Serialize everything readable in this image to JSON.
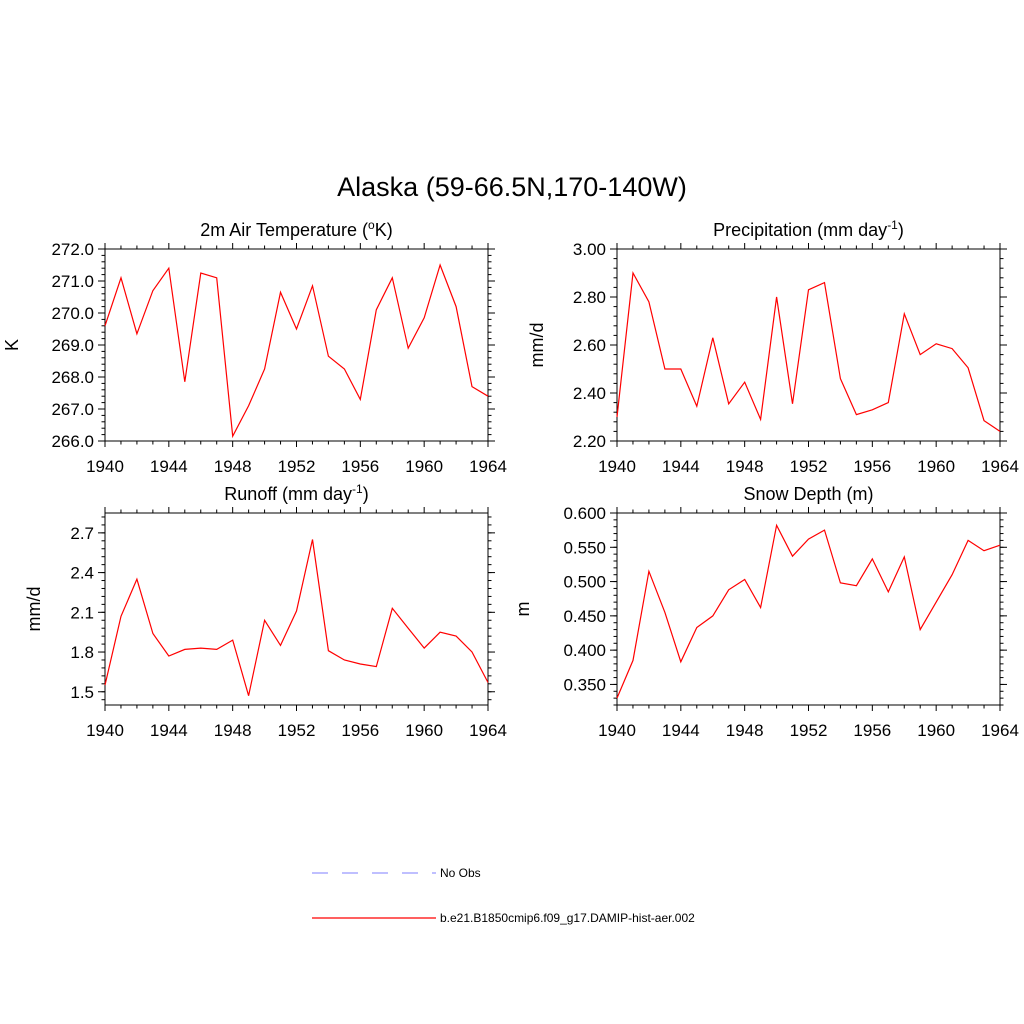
{
  "figure": {
    "title": "Alaska (59-66.5N,170-140W)"
  },
  "legend": [
    {
      "label": "No Obs",
      "color": "#9999ff",
      "dash": "dashed"
    },
    {
      "label": "b.e21.B1850cmip6.f09_g17.DAMIP-hist-aer.002",
      "color": "#ff0000",
      "dash": "solid"
    }
  ],
  "chart_data": [
    {
      "id": "temp",
      "type": "line",
      "title": "2m Air Temperature (",
      "title_sup": "o",
      "title_suffix": "K)",
      "ylabel": "K",
      "xlim": [
        1940,
        1964
      ],
      "ylim": [
        266.0,
        272.0
      ],
      "xticks": [
        "1940",
        "1944",
        "1948",
        "1952",
        "1956",
        "1960",
        "1964"
      ],
      "yticks": [
        "266.0",
        "267.0",
        "268.0",
        "269.0",
        "270.0",
        "271.0",
        "272.0"
      ],
      "ytick_values": [
        266,
        267,
        268,
        269,
        270,
        271,
        272
      ],
      "yminor": 0.2,
      "color": "#ff0000",
      "x": [
        1940,
        1941,
        1942,
        1943,
        1944,
        1945,
        1946,
        1947,
        1948,
        1949,
        1950,
        1951,
        1952,
        1953,
        1954,
        1955,
        1956,
        1957,
        1958,
        1959,
        1960,
        1961,
        1962,
        1963,
        1964
      ],
      "y": [
        269.6,
        271.1,
        269.35,
        270.7,
        271.4,
        267.85,
        271.25,
        271.1,
        266.15,
        267.1,
        268.25,
        270.65,
        269.5,
        270.85,
        268.65,
        268.25,
        267.3,
        270.1,
        271.1,
        268.9,
        269.85,
        271.5,
        270.2,
        267.7,
        267.4
      ]
    },
    {
      "id": "precip",
      "type": "line",
      "title": "Precipitation (mm day",
      "title_sup": "-1",
      "title_suffix": ")",
      "ylabel": "mm/d",
      "xlim": [
        1940,
        1964
      ],
      "ylim": [
        2.2,
        3.0
      ],
      "xticks": [
        "1940",
        "1944",
        "1948",
        "1952",
        "1956",
        "1960",
        "1964"
      ],
      "yticks": [
        "2.20",
        "2.40",
        "2.60",
        "2.80",
        "3.00"
      ],
      "ytick_values": [
        2.2,
        2.4,
        2.6,
        2.8,
        3.0
      ],
      "yminor": 0.04,
      "color": "#ff0000",
      "x": [
        1940,
        1941,
        1942,
        1943,
        1944,
        1945,
        1946,
        1947,
        1948,
        1949,
        1950,
        1951,
        1952,
        1953,
        1954,
        1955,
        1956,
        1957,
        1958,
        1959,
        1960,
        1961,
        1962,
        1963,
        1964
      ],
      "y": [
        2.3,
        2.9,
        2.78,
        2.5,
        2.5,
        2.345,
        2.63,
        2.355,
        2.445,
        2.29,
        2.8,
        2.355,
        2.83,
        2.86,
        2.46,
        2.31,
        2.33,
        2.36,
        2.73,
        2.56,
        2.605,
        2.585,
        2.505,
        2.285,
        2.24
      ]
    },
    {
      "id": "runoff",
      "type": "line",
      "title": "Runoff (mm day",
      "title_sup": "-1",
      "title_suffix": ")",
      "ylabel": "mm/d",
      "xlim": [
        1940,
        1964
      ],
      "ylim": [
        1.4,
        2.85
      ],
      "xticks": [
        "1940",
        "1944",
        "1948",
        "1952",
        "1956",
        "1960",
        "1964"
      ],
      "yticks": [
        "1.5",
        "1.8",
        "2.1",
        "2.4",
        "2.7"
      ],
      "ytick_values": [
        1.5,
        1.8,
        2.1,
        2.4,
        2.7
      ],
      "yminor": 0.06,
      "color": "#ff0000",
      "x": [
        1940,
        1941,
        1942,
        1943,
        1944,
        1945,
        1946,
        1947,
        1948,
        1949,
        1950,
        1951,
        1952,
        1953,
        1954,
        1955,
        1956,
        1957,
        1958,
        1959,
        1960,
        1961,
        1962,
        1963,
        1964
      ],
      "y": [
        1.55,
        2.07,
        2.35,
        1.94,
        1.77,
        1.82,
        1.83,
        1.82,
        1.89,
        1.47,
        2.04,
        1.85,
        2.11,
        2.65,
        1.81,
        1.74,
        1.71,
        1.69,
        2.13,
        1.98,
        1.83,
        1.95,
        1.92,
        1.8,
        1.57
      ]
    },
    {
      "id": "snow",
      "type": "line",
      "title": "Snow Depth (m)",
      "title_sup": "",
      "title_suffix": "",
      "ylabel": "m",
      "xlim": [
        1940,
        1964
      ],
      "ylim": [
        0.32,
        0.6
      ],
      "xticks": [
        "1940",
        "1944",
        "1948",
        "1952",
        "1956",
        "1960",
        "1964"
      ],
      "yticks": [
        "0.350",
        "0.400",
        "0.450",
        "0.500",
        "0.550",
        "0.600"
      ],
      "ytick_values": [
        0.35,
        0.4,
        0.45,
        0.5,
        0.55,
        0.6
      ],
      "yminor": 0.01,
      "color": "#ff0000",
      "x": [
        1940,
        1941,
        1942,
        1943,
        1944,
        1945,
        1946,
        1947,
        1948,
        1949,
        1950,
        1951,
        1952,
        1953,
        1954,
        1955,
        1956,
        1957,
        1958,
        1959,
        1960,
        1961,
        1962,
        1963,
        1964
      ],
      "y": [
        0.33,
        0.385,
        0.515,
        0.455,
        0.383,
        0.433,
        0.45,
        0.488,
        0.503,
        0.462,
        0.582,
        0.537,
        0.562,
        0.575,
        0.498,
        0.494,
        0.533,
        0.485,
        0.536,
        0.43,
        0.47,
        0.51,
        0.56,
        0.545,
        0.553
      ]
    }
  ]
}
